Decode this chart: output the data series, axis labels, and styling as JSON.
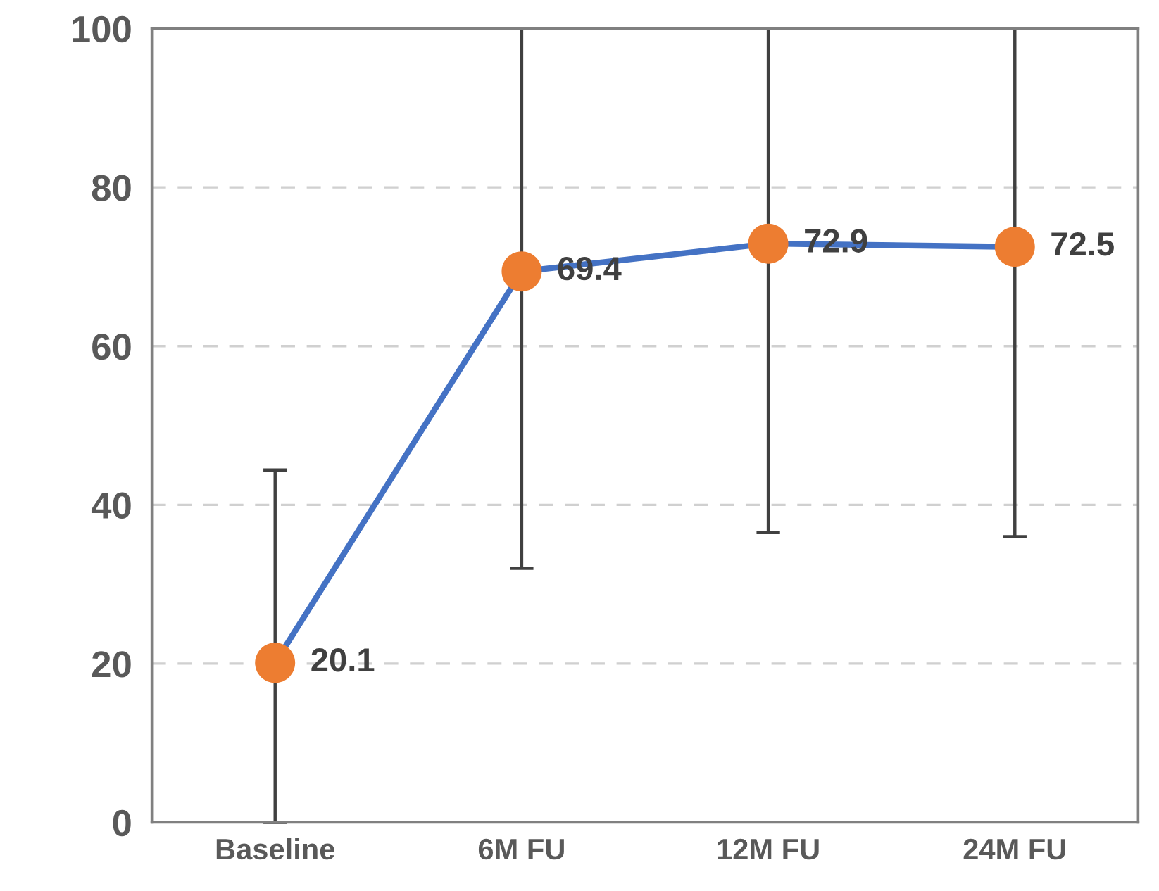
{
  "chart_data": {
    "type": "line",
    "categories": [
      "Baseline",
      "6M FU",
      "12M FU",
      "24M FU"
    ],
    "series": [
      {
        "color": "#4472c4",
        "colors": [
          "#ed7d31",
          "#ed7d31",
          "#ed7d31",
          "#ed7d31"
        ],
        "values": [
          20.1,
          69.4,
          72.9,
          72.5
        ],
        "errors": [
          [
            0,
            44.4
          ],
          [
            32,
            100
          ],
          [
            36.5,
            100
          ],
          [
            36,
            100
          ]
        ]
      }
    ],
    "marker": "circle",
    "data_labels": true,
    "ylim": [
      0,
      100
    ],
    "yticks": [
      0,
      20,
      40,
      60,
      80,
      100
    ],
    "grid": "y"
  }
}
